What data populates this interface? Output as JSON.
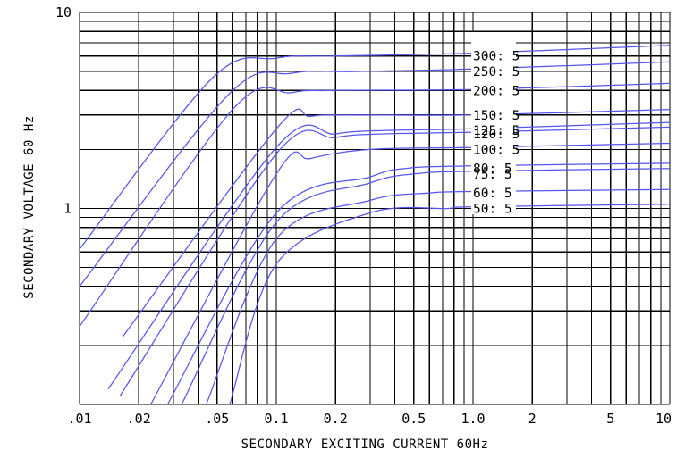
{
  "chart_data": {
    "type": "line",
    "xlabel": "SECONDARY EXCITING CURRENT 60Hz",
    "ylabel": "SECONDARY VOLTAGE 60 Hz",
    "x_scale": "log",
    "y_scale": "log",
    "xlim": [
      0.01,
      10
    ],
    "ylim": [
      0.1,
      10
    ],
    "x_ticks": [
      {
        "value": 0.01,
        "label": ".01"
      },
      {
        "value": 0.02,
        "label": ".02"
      },
      {
        "value": 0.05,
        "label": ".05"
      },
      {
        "value": 0.1,
        "label": "0.1"
      },
      {
        "value": 0.2,
        "label": "0.2"
      },
      {
        "value": 0.5,
        "label": "0.5"
      },
      {
        "value": 1,
        "label": "1.0"
      },
      {
        "value": 2,
        "label": "2"
      },
      {
        "value": 5,
        "label": "5"
      },
      {
        "value": 10,
        "label": "10"
      }
    ],
    "y_ticks": [
      {
        "value": 1,
        "label": "1"
      },
      {
        "value": 10,
        "label": "10"
      }
    ],
    "grid": true,
    "line_color": "#5555ee",
    "series": [
      {
        "name": "300:5",
        "x": [
          0.01,
          0.047,
          0.1,
          0.2,
          1,
          10
        ],
        "y": [
          0.62,
          4.6,
          5.85,
          6.0,
          6.2,
          6.8
        ]
      },
      {
        "name": "250:5",
        "x": [
          0.01,
          0.057,
          0.12,
          0.25,
          1,
          10
        ],
        "y": [
          0.4,
          3.8,
          4.9,
          5.0,
          5.15,
          5.6
        ]
      },
      {
        "name": "200:5",
        "x": [
          0.01,
          0.06,
          0.12,
          0.2,
          1,
          10
        ],
        "y": [
          0.25,
          3.2,
          3.9,
          4.0,
          4.05,
          4.35
        ]
      },
      {
        "name": "150:5",
        "x": [
          0.0165,
          0.1,
          0.15,
          0.25,
          1,
          10
        ],
        "y": [
          0.22,
          2.55,
          2.95,
          3.0,
          3.0,
          3.2
        ]
      },
      {
        "name": "125:5",
        "x": [
          0.014,
          0.1,
          0.2,
          0.35,
          1,
          10
        ],
        "y": [
          0.12,
          2.05,
          2.4,
          2.5,
          2.55,
          2.75
        ]
      },
      {
        "name": "120:5",
        "x": [
          0.016,
          0.1,
          0.2,
          0.35,
          1,
          10
        ],
        "y": [
          0.11,
          1.9,
          2.3,
          2.4,
          2.45,
          2.6
        ]
      },
      {
        "name": "100:5",
        "x": [
          0.023,
          0.1,
          0.15,
          0.3,
          1,
          10
        ],
        "y": [
          0.1,
          1.5,
          1.8,
          2.0,
          2.05,
          2.15
        ]
      },
      {
        "name": "80:5",
        "x": [
          0.028,
          0.1,
          0.3,
          0.45,
          1,
          10
        ],
        "y": [
          0.1,
          0.95,
          1.45,
          1.6,
          1.65,
          1.7
        ]
      },
      {
        "name": "75:5",
        "x": [
          0.033,
          0.1,
          0.3,
          0.5,
          1,
          10
        ],
        "y": [
          0.1,
          0.85,
          1.35,
          1.5,
          1.55,
          1.6
        ]
      },
      {
        "name": "60:5",
        "x": [
          0.044,
          0.1,
          0.3,
          0.6,
          1,
          10
        ],
        "y": [
          0.1,
          0.7,
          1.1,
          1.2,
          1.22,
          1.25
        ]
      },
      {
        "name": "50:5",
        "x": [
          0.058,
          0.1,
          0.3,
          0.75,
          1,
          10
        ],
        "y": [
          0.1,
          0.52,
          0.95,
          1.0,
          1.02,
          1.05
        ]
      }
    ]
  }
}
